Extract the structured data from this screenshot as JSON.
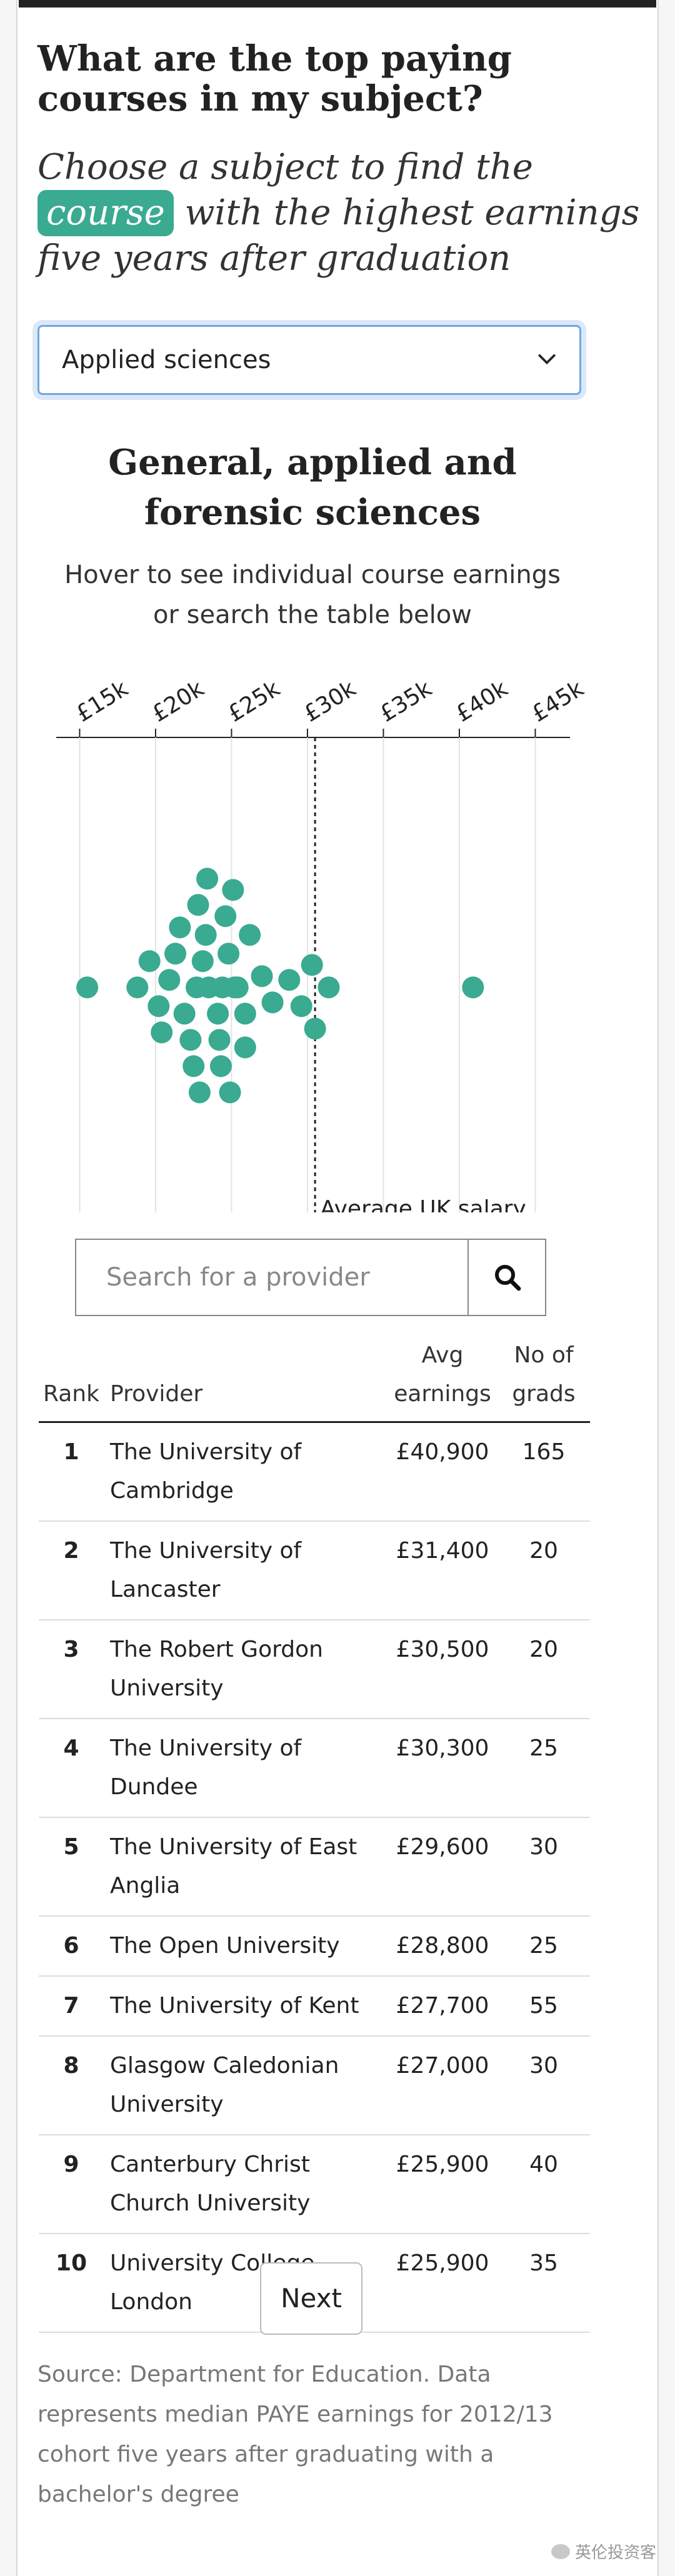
{
  "header": {
    "headline": "What are the top paying courses in my subject?",
    "standfirst_before": "Choose a subject to find the",
    "standfirst_highlight": "course",
    "standfirst_after": "with the highest earnings five years after graduation"
  },
  "subject_select": {
    "value": "Applied sciences"
  },
  "chart_data": {
    "type": "scatter",
    "title": "General, applied and forensic sciences",
    "subtitle": "Hover to see individual course earnings or search the table below",
    "x_ticks": [
      "£15k",
      "£20k",
      "£25k",
      "£30k",
      "£35k",
      "£40k",
      "£45k"
    ],
    "xlim": [
      13500,
      46000
    ],
    "reference_line": {
      "value": 30500,
      "label": "Average UK salary"
    },
    "point_color": "#3aaa91",
    "values": [
      40900,
      31400,
      30500,
      30300,
      29600,
      28800,
      27700,
      27000,
      25900,
      25900,
      15500,
      18800,
      19600,
      20200,
      20400,
      20900,
      21300,
      21600,
      21900,
      22300,
      22500,
      22700,
      22800,
      22900,
      23100,
      23300,
      23400,
      23500,
      24100,
      24200,
      24300,
      24400,
      24600,
      24800,
      24900,
      25100,
      25200,
      25300,
      25400,
      26200
    ]
  },
  "search": {
    "placeholder": "Search for a provider"
  },
  "table": {
    "headers": {
      "rank": "Rank",
      "provider": "Provider",
      "earnings": "Avg earnings",
      "grads": "No of grads"
    },
    "rows": [
      {
        "rank": "1",
        "provider": "The University of Cambridge",
        "earnings": "£40,900",
        "grads": "165"
      },
      {
        "rank": "2",
        "provider": "The University of Lancaster",
        "earnings": "£31,400",
        "grads": "20"
      },
      {
        "rank": "3",
        "provider": "The Robert Gordon University",
        "earnings": "£30,500",
        "grads": "20"
      },
      {
        "rank": "4",
        "provider": "The University of Dundee",
        "earnings": "£30,300",
        "grads": "25"
      },
      {
        "rank": "5",
        "provider": "The University of East Anglia",
        "earnings": "£29,600",
        "grads": "30"
      },
      {
        "rank": "6",
        "provider": "The Open University",
        "earnings": "£28,800",
        "grads": "25"
      },
      {
        "rank": "7",
        "provider": "The University of Kent",
        "earnings": "£27,700",
        "grads": "55"
      },
      {
        "rank": "8",
        "provider": "Glasgow Caledonian University",
        "earnings": "£27,000",
        "grads": "30"
      },
      {
        "rank": "9",
        "provider": "Canterbury Christ Church University",
        "earnings": "£25,900",
        "grads": "40"
      },
      {
        "rank": "10",
        "provider": "University College London",
        "earnings": "£25,900",
        "grads": "35"
      }
    ]
  },
  "pagination": {
    "next_label": "Next"
  },
  "source_note": "Source: Department for Education. Data represents median PAYE earnings for 2012/13 cohort five years after graduating with a bachelor's degree",
  "watermark": "英伦投资客"
}
